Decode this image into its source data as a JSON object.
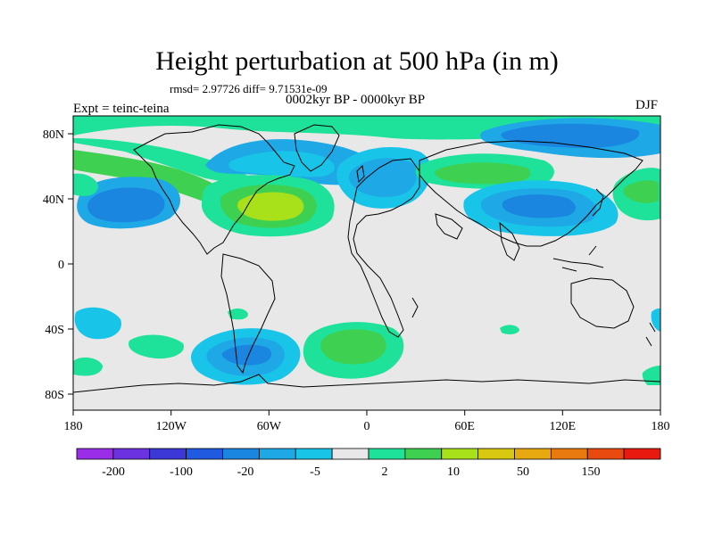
{
  "title": "Height perturbation at 500 hPa (in m)",
  "stats": "rmsd= 2.97726 diff= 9.71531e-09",
  "period": "0002kyr BP - 0000kyr BP",
  "experiment": "Expt = teinc-teina",
  "season": "DJF",
  "lat_ticks": [
    "80N",
    "40N",
    "0",
    "40S",
    "80S"
  ],
  "lon_ticks": [
    "180",
    "120W",
    "60W",
    "0",
    "60E",
    "120E",
    "180"
  ],
  "colorbar": {
    "colors": [
      "#9a2ee8",
      "#6a32e0",
      "#3c38d8",
      "#1f5ae0",
      "#1a86e0",
      "#1ea8e6",
      "#18c4e8",
      "#e8e8e8",
      "#1ee29a",
      "#3ed050",
      "#a8e01a",
      "#d8c810",
      "#e8a810",
      "#e87a10",
      "#e84a10",
      "#e81a10"
    ],
    "labels": [
      "-200",
      "-100",
      "-20",
      "-5",
      "2",
      "10",
      "50",
      "150"
    ]
  }
}
